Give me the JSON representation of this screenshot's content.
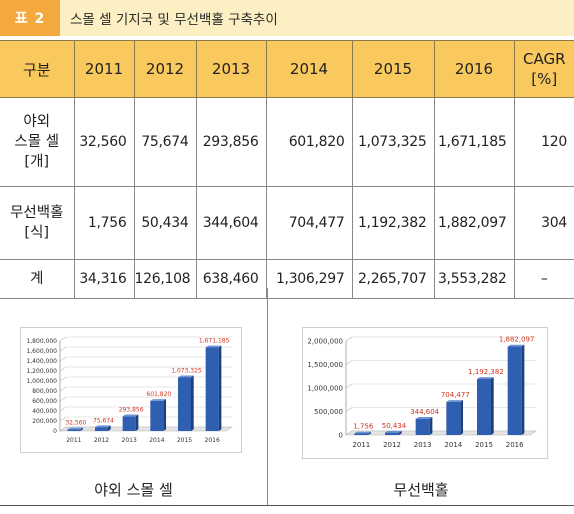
{
  "caption": {
    "tag": "표 2",
    "title": "스몰 셀 기지국 및 무선백홀 구축추이"
  },
  "table": {
    "headers": [
      "구분",
      "2011",
      "2012",
      "2013",
      "2014",
      "2015",
      "2016",
      "CAGR\n[%]"
    ],
    "rows": [
      {
        "label": "야외\n스몰 셀\n[개]",
        "values": [
          "32,560",
          "75,674",
          "293,856",
          "601,820",
          "1,073,325",
          "1,671,185",
          "120"
        ]
      },
      {
        "label": "무선백홀\n[식]",
        "values": [
          "1,756",
          "50,434",
          "344,604",
          "704,477",
          "1,192,382",
          "1,882,097",
          "304"
        ]
      },
      {
        "label": "계",
        "values": [
          "34,316",
          "126,108",
          "638,460",
          "1,306,297",
          "2,265,707",
          "3,553,282",
          "–"
        ]
      }
    ]
  },
  "colors": {
    "caption_tag": "#f3a93e",
    "caption_bg": "#fcefc3",
    "header_bg": "#f9c95e",
    "bar": "#2f5fb0",
    "data_label": "#d2321e"
  },
  "chart_data": [
    {
      "type": "bar",
      "caption": "야외 스몰 셀",
      "categories": [
        "2011",
        "2012",
        "2013",
        "2014",
        "2015",
        "2016"
      ],
      "values": [
        32560,
        75674,
        293856,
        601820,
        1073325,
        1671185
      ],
      "data_labels": [
        "32,560",
        "75,674",
        "293,856",
        "601,820",
        "1,073,325",
        "1,671,185"
      ],
      "ylim": [
        0,
        1800000
      ],
      "yticks": [
        "0",
        "200,000",
        "400,000",
        "600,000",
        "800,000",
        "1,000,000",
        "1,200,000",
        "1,400,000",
        "1,600,000",
        "1,800,000"
      ],
      "grid": true
    },
    {
      "type": "bar",
      "caption": "무선백홀",
      "categories": [
        "2011",
        "2012",
        "2013",
        "2014",
        "2015",
        "2016"
      ],
      "values": [
        1756,
        50434,
        344604,
        704477,
        1192382,
        1882097
      ],
      "data_labels": [
        "1,756",
        "50,434",
        "344,604",
        "704,477",
        "1,192,382",
        "1,882,097"
      ],
      "ylim": [
        0,
        2000000
      ],
      "yticks": [
        "0",
        "500,000",
        "1,000,000",
        "1,500,000",
        "2,000,000"
      ],
      "grid": true
    }
  ]
}
